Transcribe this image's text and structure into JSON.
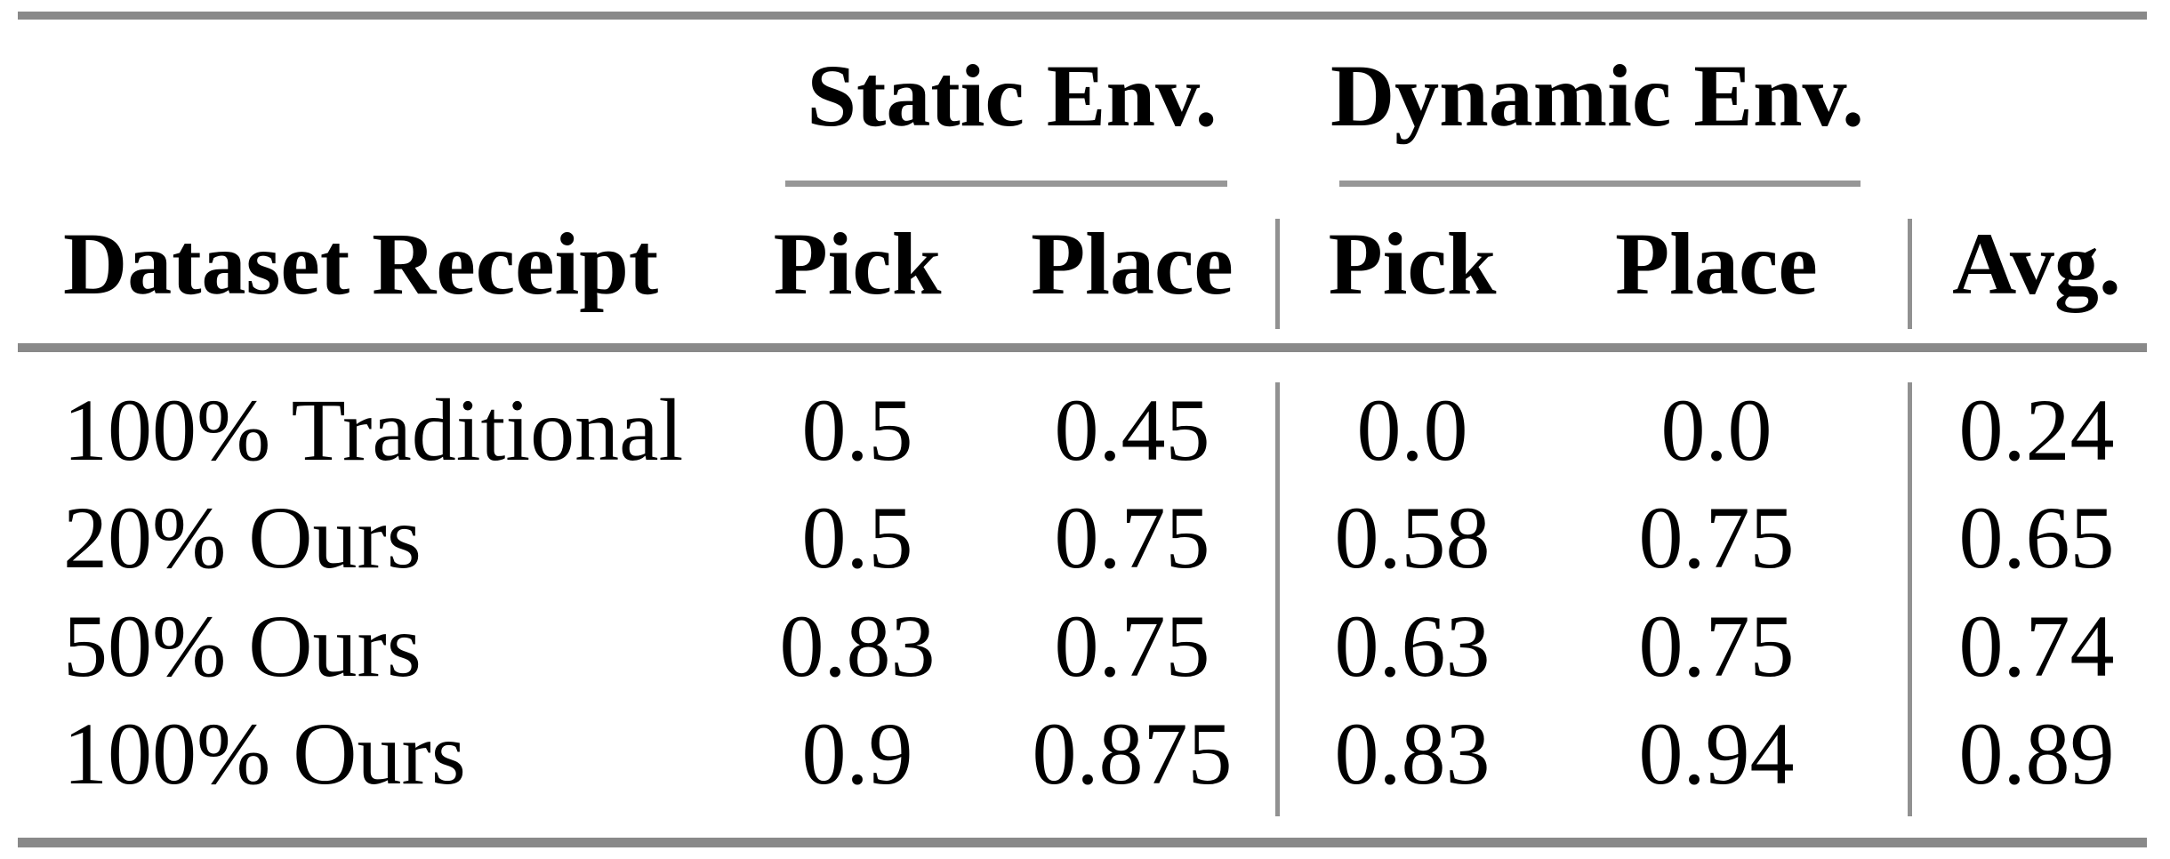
{
  "table": {
    "column_groups": [
      {
        "label": "Static Env.",
        "columns": [
          "Pick",
          "Place"
        ]
      },
      {
        "label": "Dynamic Env.",
        "columns": [
          "Pick",
          "Place"
        ]
      }
    ],
    "header": {
      "row_label": "Dataset Receipt",
      "cols": [
        "Pick",
        "Place",
        "Pick",
        "Place",
        "Avg."
      ]
    },
    "rows": [
      {
        "label": "100% Traditional",
        "values": [
          "0.5",
          "0.45",
          "0.0",
          "0.0",
          "0.24"
        ]
      },
      {
        "label": "20% Ours",
        "values": [
          "0.5",
          "0.75",
          "0.58",
          "0.75",
          "0.65"
        ]
      },
      {
        "label": "50% Ours",
        "values": [
          "0.83",
          "0.75",
          "0.63",
          "0.75",
          "0.74"
        ]
      },
      {
        "label": "100% Ours",
        "values": [
          "0.9",
          "0.875",
          "0.83",
          "0.94",
          "0.89"
        ]
      }
    ]
  },
  "chart_data": {
    "type": "table",
    "columns": [
      "Dataset Receipt",
      "Static Env. Pick",
      "Static Env. Place",
      "Dynamic Env. Pick",
      "Dynamic Env. Place",
      "Avg."
    ],
    "rows": [
      [
        "100% Traditional",
        0.5,
        0.45,
        0.0,
        0.0,
        0.24
      ],
      [
        "20% Ours",
        0.5,
        0.75,
        0.58,
        0.75,
        0.65
      ],
      [
        "50% Ours",
        0.83,
        0.75,
        0.63,
        0.75,
        0.74
      ],
      [
        "100% Ours",
        0.9,
        0.875,
        0.83,
        0.94,
        0.89
      ]
    ]
  },
  "colors": {
    "rule_gray": "#898989",
    "text": "#000000",
    "background": "#ffffff"
  }
}
